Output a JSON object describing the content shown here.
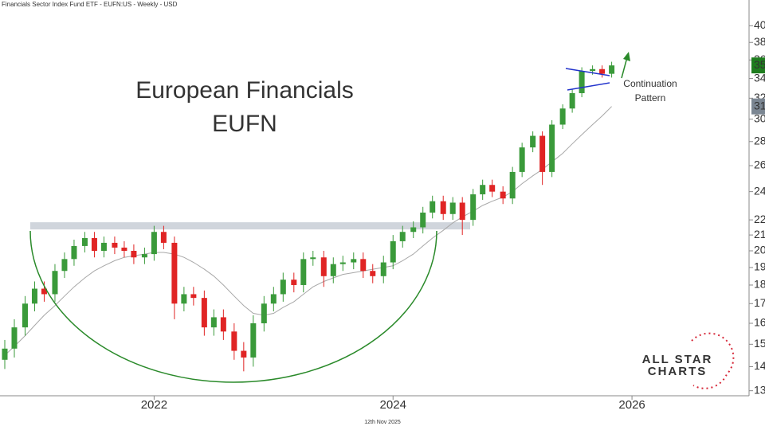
{
  "header": "Financials Sector Index Fund ETF - EUFN:US - Weekly - USD",
  "footer_date": "12th Nov 2025",
  "logo": [
    "ALL STAR",
    "CHARTS"
  ],
  "chart_data": {
    "type": "candlestick",
    "title": [
      "European Financials",
      "EUFN"
    ],
    "annotation": [
      "Continuation",
      "Pattern"
    ],
    "log_scale": true,
    "grid": false,
    "up_color": "#3a9a3a",
    "down_color": "#e02424",
    "ma_color": "#a8a8a8",
    "resistance_level": 21.6,
    "x": [
      2020.75,
      2020.83,
      2020.92,
      2021.0,
      2021.08,
      2021.17,
      2021.25,
      2021.33,
      2021.42,
      2021.5,
      2021.58,
      2021.67,
      2021.75,
      2021.83,
      2021.92,
      2022.0,
      2022.08,
      2022.17,
      2022.25,
      2022.33,
      2022.42,
      2022.5,
      2022.58,
      2022.67,
      2022.75,
      2022.83,
      2022.92,
      2023.0,
      2023.08,
      2023.17,
      2023.25,
      2023.33,
      2023.42,
      2023.5,
      2023.58,
      2023.67,
      2023.75,
      2023.83,
      2023.92,
      2024.0,
      2024.08,
      2024.17,
      2024.25,
      2024.33,
      2024.42,
      2024.5,
      2024.58,
      2024.67,
      2024.75,
      2024.83,
      2024.92,
      2025.0,
      2025.08,
      2025.17,
      2025.25,
      2025.33,
      2025.42,
      2025.5,
      2025.58,
      2025.67,
      2025.75,
      2025.83
    ],
    "open": [
      14.3,
      14.8,
      15.8,
      17.0,
      17.8,
      17.5,
      18.8,
      19.5,
      20.3,
      20.8,
      20.0,
      20.5,
      20.2,
      20.0,
      19.6,
      19.8,
      21.2,
      20.5,
      17.0,
      17.5,
      17.3,
      15.8,
      16.3,
      15.6,
      14.7,
      14.4,
      16.0,
      17.0,
      17.5,
      18.3,
      18.0,
      19.5,
      19.6,
      18.5,
      19.2,
      19.3,
      19.5,
      18.8,
      18.5,
      19.3,
      20.6,
      21.2,
      21.5,
      22.5,
      23.3,
      22.4,
      23.2,
      22.0,
      23.8,
      24.5,
      24.0,
      23.5,
      25.5,
      27.5,
      28.5,
      25.5,
      29.5,
      31.0,
      32.5,
      34.8,
      35.0,
      34.5
    ],
    "high": [
      15.2,
      16.2,
      17.4,
      18.2,
      18.2,
      19.2,
      19.9,
      20.7,
      21.2,
      21.2,
      20.9,
      20.9,
      20.6,
      20.4,
      20.2,
      21.6,
      21.6,
      20.9,
      17.9,
      17.9,
      17.7,
      16.7,
      16.7,
      16.0,
      15.1,
      16.4,
      17.4,
      17.9,
      18.7,
      18.7,
      19.9,
      20.0,
      20.0,
      19.6,
      19.7,
      19.9,
      19.9,
      19.2,
      19.7,
      21.0,
      21.6,
      21.9,
      22.9,
      23.7,
      23.7,
      23.6,
      23.6,
      24.2,
      24.9,
      24.9,
      24.4,
      25.9,
      27.9,
      28.9,
      28.9,
      29.9,
      31.4,
      32.9,
      35.2,
      35.4,
      35.4,
      35.8
    ],
    "low": [
      13.9,
      14.4,
      15.4,
      16.6,
      17.1,
      17.1,
      18.4,
      19.1,
      19.9,
      19.6,
      19.6,
      19.8,
      19.6,
      19.2,
      19.2,
      19.4,
      20.1,
      16.2,
      16.6,
      16.9,
      15.4,
      15.4,
      15.2,
      14.3,
      13.8,
      14.0,
      15.6,
      16.6,
      17.1,
      17.6,
      17.6,
      19.1,
      17.9,
      18.1,
      18.8,
      18.9,
      18.4,
      18.1,
      18.1,
      18.9,
      20.2,
      20.8,
      21.1,
      22.1,
      22.0,
      22.0,
      21.0,
      21.6,
      23.4,
      23.6,
      23.1,
      23.1,
      25.1,
      27.1,
      24.5,
      25.1,
      29.1,
      30.6,
      32.1,
      34.4,
      34.1,
      34.1
    ],
    "close": [
      14.8,
      15.8,
      17.0,
      17.8,
      17.5,
      18.8,
      19.5,
      20.3,
      20.8,
      20.0,
      20.5,
      20.2,
      20.0,
      19.6,
      19.8,
      21.2,
      20.5,
      17.0,
      17.5,
      17.3,
      15.8,
      16.3,
      15.6,
      14.7,
      14.4,
      16.0,
      17.0,
      17.5,
      18.3,
      18.0,
      19.5,
      19.6,
      18.5,
      19.2,
      19.3,
      19.5,
      18.8,
      18.5,
      19.3,
      20.6,
      21.2,
      21.5,
      22.5,
      23.3,
      22.4,
      23.2,
      22.0,
      23.8,
      24.5,
      24.0,
      23.5,
      25.5,
      27.5,
      28.5,
      25.5,
      29.5,
      31.0,
      32.5,
      34.8,
      35.0,
      34.5,
      35.4
    ],
    "ma": [
      14.5,
      14.9,
      15.4,
      15.9,
      16.4,
      16.9,
      17.4,
      17.9,
      18.4,
      18.8,
      19.1,
      19.4,
      19.6,
      19.7,
      19.8,
      19.9,
      19.9,
      19.8,
      19.6,
      19.3,
      18.9,
      18.5,
      18.0,
      17.4,
      16.9,
      16.5,
      16.4,
      16.5,
      16.8,
      17.1,
      17.5,
      17.9,
      18.2,
      18.4,
      18.6,
      18.7,
      18.8,
      18.9,
      19.0,
      19.1,
      19.4,
      19.8,
      20.3,
      20.8,
      21.3,
      21.8,
      22.2,
      22.6,
      23.0,
      23.3,
      23.6,
      24.0,
      24.6,
      25.2,
      25.7,
      26.3,
      27.0,
      27.8,
      28.6,
      29.5,
      30.3,
      31.2
    ],
    "price_markers": [
      {
        "value": 35.4,
        "color": "#1e7d1e"
      },
      {
        "value": 31.2,
        "color": "#7b8692"
      }
    ],
    "xlim": [
      2020.71,
      2026.98
    ],
    "xticks": [
      2022,
      2024,
      2026
    ],
    "ylim": [
      12.8,
      43.3
    ],
    "yticks": [
      13,
      14,
      15,
      16,
      17,
      18,
      19,
      20,
      21,
      22,
      24,
      26,
      28,
      30,
      32,
      34,
      36,
      38,
      40
    ]
  }
}
